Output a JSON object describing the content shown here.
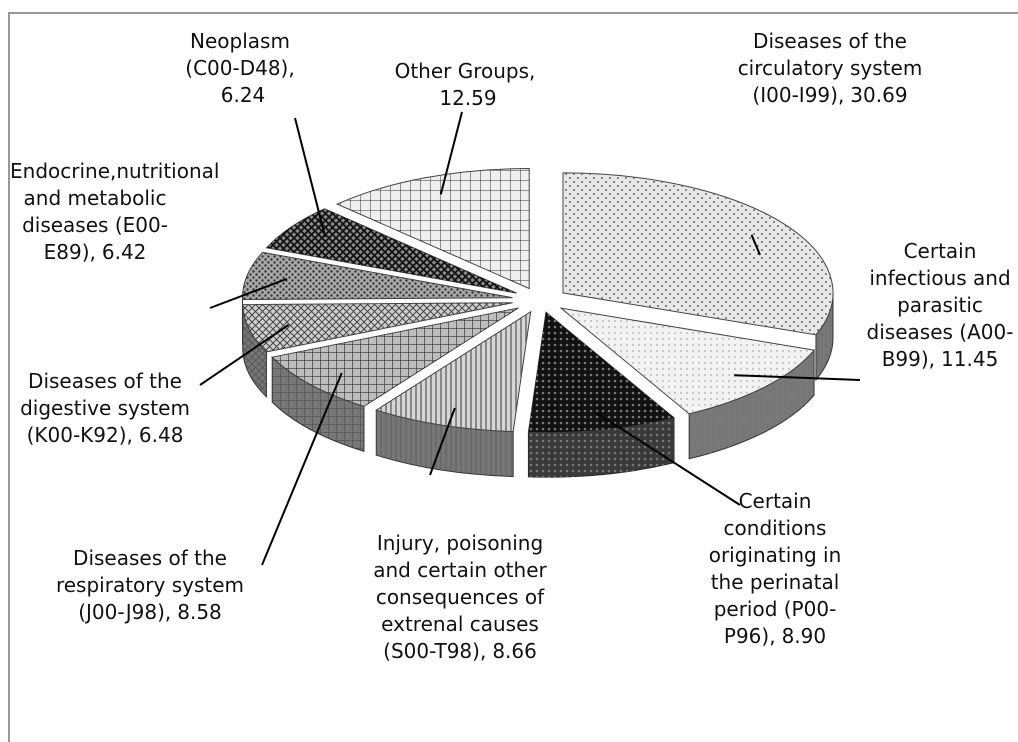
{
  "chart_data": {
    "type": "pie3d",
    "categories": [
      "Diseases of the circulatory system (I00-I99),",
      "Certain infectious and parasitic diseases (A00-B99),",
      "Certain conditions originating in the perinatal period (P00-P96),",
      "Injury, poisoning and certain other consequences of extrenal causes (S00-T98),",
      "Diseases of the respiratory system (J00-J98),",
      "Diseases of the digestive system (K00-K92),",
      "Endocrine,nutritional and metabolic diseases (E00-E89),",
      "Neoplasm (C00-D48),",
      "Other Groups,"
    ],
    "values": [
      30.69,
      11.45,
      8.9,
      8.66,
      8.58,
      6.48,
      6.42,
      6.24,
      12.59
    ],
    "value_labels": [
      "30.69",
      "11.45",
      "8.90",
      "8.66",
      "8.58",
      "6.48",
      "6.42",
      "6.24",
      "12.59"
    ],
    "colors": [
      "#e8e8e8",
      "#f2f2f2",
      "#3a3a3a",
      "#d6d6d6",
      "#bdbdbd",
      "#d0d0d0",
      "#a8a8a8",
      "#8a8a8a",
      "#efefef"
    ]
  }
}
